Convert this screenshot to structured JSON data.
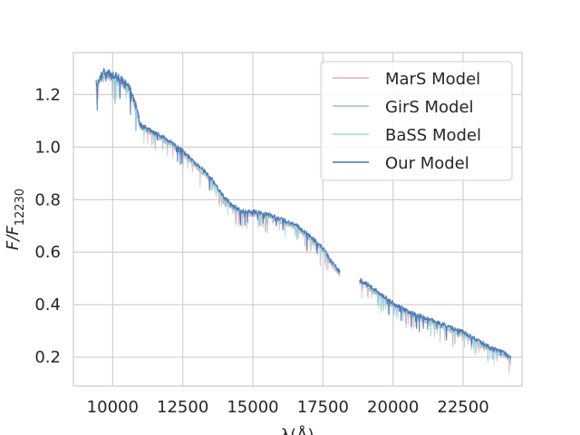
{
  "chart_data": {
    "type": "line",
    "title": "",
    "xlabel": "λ(Å)",
    "ylabel_main": "F/F",
    "ylabel_sub": "12230",
    "xlim": [
      8600,
      24600
    ],
    "ylim": [
      0.09,
      1.36
    ],
    "xticks": [
      10000,
      12500,
      15000,
      17500,
      20000,
      22500
    ],
    "yticks": [
      0.2,
      0.4,
      0.6,
      0.8,
      1.0,
      1.2
    ],
    "xtick_labels": [
      "10000",
      "12500",
      "15000",
      "17500",
      "20000",
      "22500"
    ],
    "ytick_labels": [
      "0.2",
      "0.4",
      "0.6",
      "0.8",
      "1.0",
      "1.2"
    ],
    "grid": true,
    "legend_position": "top-right",
    "series": [
      {
        "name": "MarS Model",
        "color": "#e8a9bb"
      },
      {
        "name": "GirS Model",
        "color": "#8fc9c4"
      },
      {
        "name": "BaSS Model",
        "color": "#9fd7e8"
      },
      {
        "name": "Our Model",
        "color": "#4c72b0"
      }
    ],
    "segments": [
      {
        "x": [
          9400,
          9700,
          10000,
          10300,
          10600,
          10800,
          11000,
          11500,
          12000,
          12500,
          13000,
          13500,
          14000,
          14300,
          14600,
          15000,
          15500,
          16000,
          16500,
          17000,
          17500,
          17800,
          18100
        ],
        "y": [
          1.24,
          1.28,
          1.27,
          1.25,
          1.22,
          1.16,
          1.08,
          1.05,
          1.02,
          0.98,
          0.93,
          0.88,
          0.8,
          0.77,
          0.75,
          0.75,
          0.74,
          0.72,
          0.7,
          0.66,
          0.61,
          0.56,
          0.52
        ]
      },
      {
        "x": [
          18800,
          19100,
          19500,
          20000,
          20500,
          21000,
          21500,
          22000,
          22500,
          23000,
          23500,
          24000,
          24200
        ],
        "y": [
          0.49,
          0.47,
          0.44,
          0.4,
          0.37,
          0.35,
          0.33,
          0.31,
          0.29,
          0.26,
          0.23,
          0.21,
          0.19
        ]
      }
    ]
  }
}
